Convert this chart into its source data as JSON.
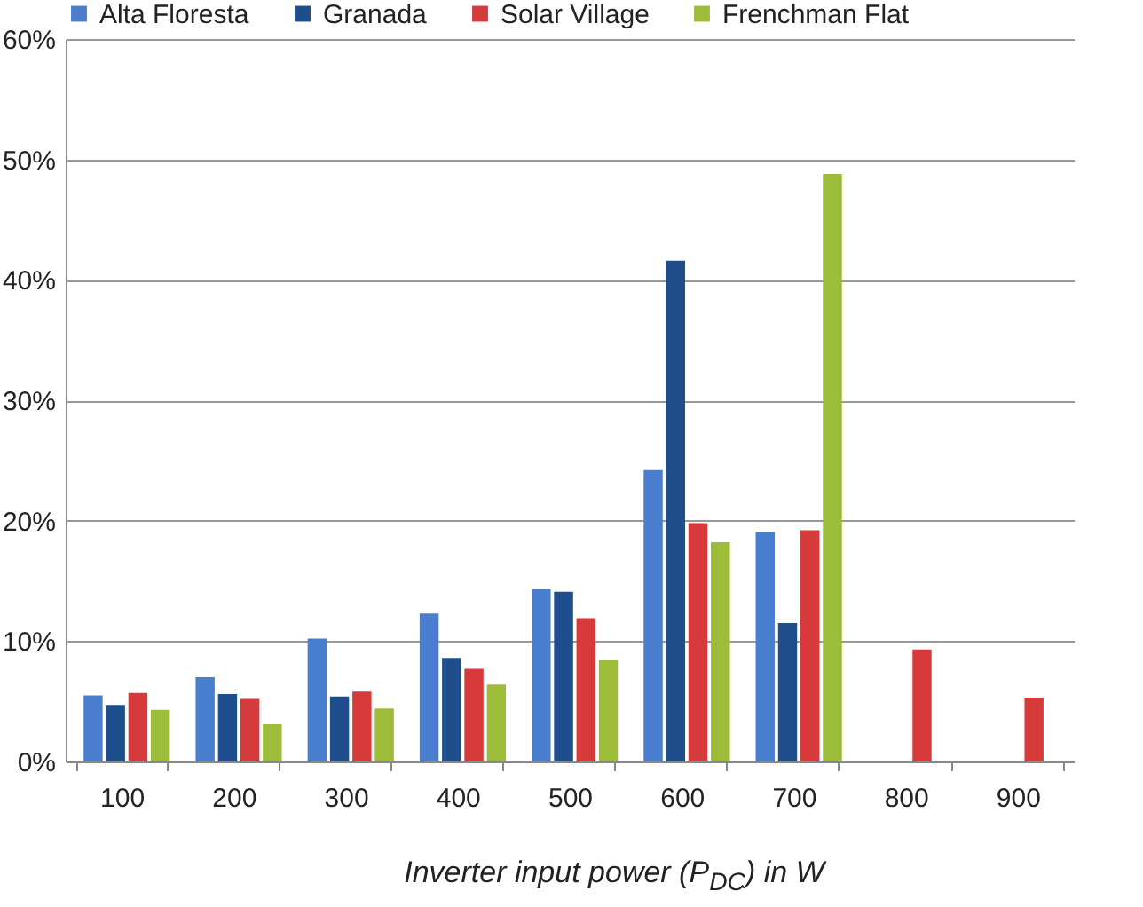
{
  "chart_data": {
    "type": "bar",
    "xlabel": "Inverter input power (P$_{DC}$)  in W",
    "categories": [
      "100",
      "200",
      "300",
      "400",
      "500",
      "600",
      "700",
      "800",
      "900"
    ],
    "series": [
      {
        "name": "Alta Floresta",
        "color": "#4a7fcf",
        "values": [
          5.5,
          7,
          10.2,
          12.3,
          14.3,
          24.2,
          19.1,
          null,
          null
        ]
      },
      {
        "name": "Granada",
        "color": "#1f4e8c",
        "values": [
          4.7,
          5.6,
          5.4,
          8.6,
          14.1,
          41.6,
          11.5,
          null,
          null
        ]
      },
      {
        "name": "Solar Village",
        "color": "#d63a3a",
        "values": [
          5.7,
          5.2,
          5.8,
          7.7,
          11.9,
          19.8,
          19.2,
          9.3,
          5.3
        ]
      },
      {
        "name": "Frenchman Flat",
        "color": "#9dbd3a",
        "values": [
          4.3,
          3.1,
          4.4,
          6.4,
          8.4,
          18.2,
          48.8,
          null,
          null
        ]
      }
    ],
    "ylim": [
      0,
      60
    ],
    "yticks": [
      {
        "value": 0,
        "label": "0%"
      },
      {
        "value": 10,
        "label": "10%"
      },
      {
        "value": 20,
        "label": "20%"
      },
      {
        "value": 30,
        "label": "30%"
      },
      {
        "value": 40,
        "label": "40%"
      },
      {
        "value": 50,
        "label": "50%"
      },
      {
        "value": 60,
        "label": "60%"
      }
    ],
    "grid": "y",
    "legend": "top"
  }
}
